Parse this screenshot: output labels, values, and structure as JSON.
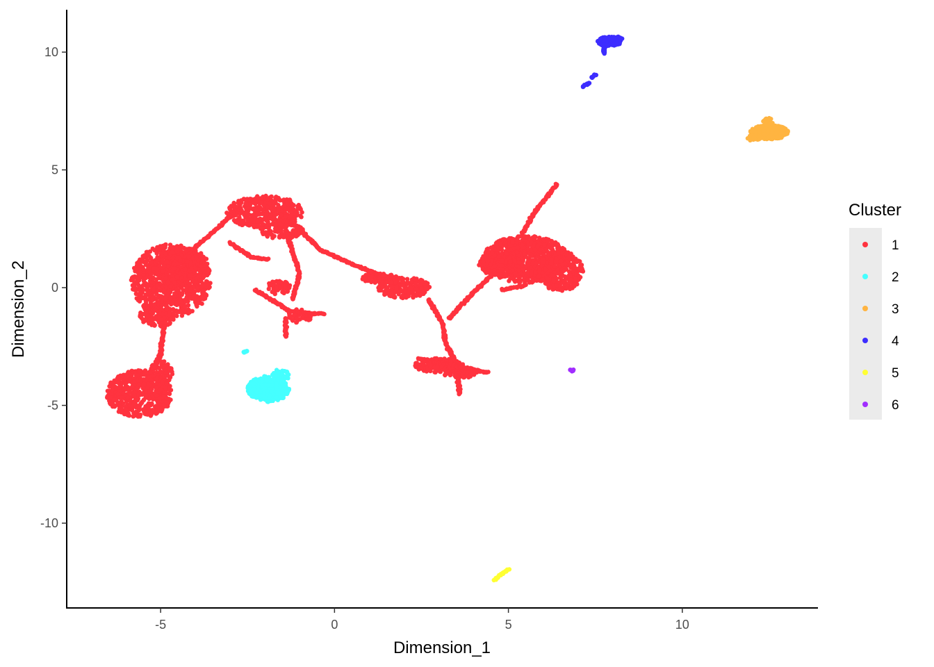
{
  "chart_data": {
    "type": "scatter",
    "xlabel": "Dimension_1",
    "ylabel": "Dimension_2",
    "xlim": [
      -7.7,
      13.9
    ],
    "ylim": [
      -13.6,
      11.8
    ],
    "x_ticks": [
      -5,
      0,
      5,
      10
    ],
    "y_ticks": [
      -10,
      -5,
      0,
      5,
      10
    ],
    "x_tick_labels": [
      "-5",
      "0",
      "5",
      "10"
    ],
    "y_tick_labels": [
      "-10",
      "-5",
      "0",
      "5",
      "10"
    ],
    "grid": false,
    "legend": {
      "title": "Cluster",
      "placement": "right"
    },
    "series": [
      {
        "name": "1",
        "color": "#FF333F",
        "regions": [
          {
            "cx": -4.7,
            "cy": 0.3,
            "rx": 1.15,
            "ry": 1.55,
            "n": 900
          },
          {
            "cx": -4.4,
            "cy": 0.9,
            "rx": 0.8,
            "ry": 0.8,
            "n": 300
          },
          {
            "cx": -5.1,
            "cy": -1.2,
            "rx": 0.5,
            "ry": 0.5,
            "n": 120
          },
          {
            "cx": -5.6,
            "cy": -4.5,
            "rx": 0.95,
            "ry": 1.0,
            "n": 550
          },
          {
            "cx": -5.0,
            "cy": -3.6,
            "rx": 0.35,
            "ry": 0.5,
            "n": 80
          },
          {
            "cx": -2.0,
            "cy": 3.2,
            "rx": 1.1,
            "ry": 0.7,
            "n": 420
          },
          {
            "cx": -1.5,
            "cy": 2.4,
            "rx": 0.6,
            "ry": 0.35,
            "n": 90
          },
          {
            "cx": 1.3,
            "cy": 0.4,
            "rx": 0.5,
            "ry": 0.22,
            "n": 80
          },
          {
            "cx": 2.0,
            "cy": 0.0,
            "rx": 0.75,
            "ry": 0.45,
            "n": 200
          },
          {
            "cx": 5.5,
            "cy": 1.2,
            "rx": 1.25,
            "ry": 1.0,
            "n": 800
          },
          {
            "cx": 6.5,
            "cy": 0.7,
            "rx": 0.65,
            "ry": 0.85,
            "n": 300
          },
          {
            "cx": 4.7,
            "cy": 1.0,
            "rx": 0.55,
            "ry": 0.5,
            "n": 150
          },
          {
            "cx": 3.0,
            "cy": -3.3,
            "rx": 0.7,
            "ry": 0.3,
            "n": 150
          },
          {
            "cx": 3.6,
            "cy": -3.6,
            "rx": 0.5,
            "ry": 0.25,
            "n": 90
          },
          {
            "cx": -1.6,
            "cy": 0.0,
            "rx": 0.35,
            "ry": 0.3,
            "n": 60
          },
          {
            "cx": -1.0,
            "cy": -1.2,
            "rx": 0.35,
            "ry": 0.3,
            "n": 50
          }
        ],
        "paths": [
          [
            [
              -4.1,
              1.6
            ],
            [
              -3.3,
              2.6
            ],
            [
              -2.8,
              3.4
            ]
          ],
          [
            [
              -1.3,
              2.9
            ],
            [
              -0.4,
              1.6
            ],
            [
              0.5,
              1.0
            ],
            [
              1.4,
              0.5
            ]
          ],
          [
            [
              -3.0,
              1.9
            ],
            [
              -2.4,
              1.3
            ],
            [
              -1.9,
              1.2
            ]
          ],
          [
            [
              -2.3,
              -0.1
            ],
            [
              -1.7,
              -0.6
            ],
            [
              -1.3,
              -1.0
            ],
            [
              -0.6,
              -1.1
            ],
            [
              -0.3,
              -1.1
            ]
          ],
          [
            [
              -1.4,
              -1.3
            ],
            [
              -1.4,
              -2.1
            ]
          ],
          [
            [
              -1.4,
              2.4
            ],
            [
              -1.0,
              0.6
            ],
            [
              -1.2,
              -0.5
            ]
          ],
          [
            [
              -4.9,
              -1.6
            ],
            [
              -5.0,
              -2.8
            ],
            [
              -5.2,
              -3.4
            ]
          ],
          [
            [
              2.7,
              -0.5
            ],
            [
              3.1,
              -1.5
            ],
            [
              3.2,
              -2.4
            ],
            [
              3.5,
              -3.2
            ],
            [
              3.6,
              -4.5
            ]
          ],
          [
            [
              3.3,
              -1.3
            ],
            [
              4.0,
              -0.2
            ],
            [
              4.5,
              0.5
            ]
          ],
          [
            [
              5.4,
              2.3
            ],
            [
              5.8,
              3.3
            ],
            [
              6.4,
              4.4
            ]
          ],
          [
            [
              2.4,
              -3.0
            ],
            [
              4.4,
              -3.6
            ]
          ],
          [
            [
              4.8,
              -0.1
            ],
            [
              5.5,
              0.1
            ]
          ]
        ]
      },
      {
        "name": "2",
        "color": "#45FFFF",
        "regions": [
          {
            "cx": -1.9,
            "cy": -4.3,
            "rx": 0.6,
            "ry": 0.55,
            "n": 400
          },
          {
            "cx": -1.55,
            "cy": -3.8,
            "rx": 0.25,
            "ry": 0.35,
            "n": 60
          }
        ],
        "paths": [
          [
            [
              -2.6,
              -2.75
            ],
            [
              -2.5,
              -2.7
            ]
          ]
        ]
      },
      {
        "name": "3",
        "color": "#FFB441",
        "regions": [
          {
            "cx": 12.5,
            "cy": 6.6,
            "rx": 0.55,
            "ry": 0.3,
            "n": 260
          },
          {
            "cx": 12.1,
            "cy": 6.35,
            "rx": 0.25,
            "ry": 0.12,
            "n": 30
          },
          {
            "cx": 12.5,
            "cy": 7.05,
            "rx": 0.18,
            "ry": 0.15,
            "n": 20
          }
        ],
        "paths": []
      },
      {
        "name": "4",
        "color": "#3D2DFF",
        "regions": [
          {
            "cx": 7.9,
            "cy": 10.45,
            "rx": 0.35,
            "ry": 0.2,
            "n": 150
          },
          {
            "cx": 8.15,
            "cy": 10.6,
            "rx": 0.15,
            "ry": 0.08,
            "n": 20
          }
        ],
        "paths": [
          [
            [
              7.75,
              10.2
            ],
            [
              7.75,
              9.95
            ]
          ],
          [
            [
              7.15,
              8.55
            ],
            [
              7.35,
              8.7
            ]
          ],
          [
            [
              7.4,
              8.9
            ],
            [
              7.5,
              9.05
            ]
          ]
        ]
      },
      {
        "name": "5",
        "color": "#FFFF33",
        "regions": [],
        "paths": [
          [
            [
              4.6,
              -12.4
            ],
            [
              5.0,
              -11.95
            ]
          ]
        ]
      },
      {
        "name": "6",
        "color": "#A12DFF",
        "regions": [
          {
            "cx": 6.82,
            "cy": -3.5,
            "rx": 0.06,
            "ry": 0.06,
            "n": 8
          }
        ],
        "paths": []
      }
    ]
  }
}
